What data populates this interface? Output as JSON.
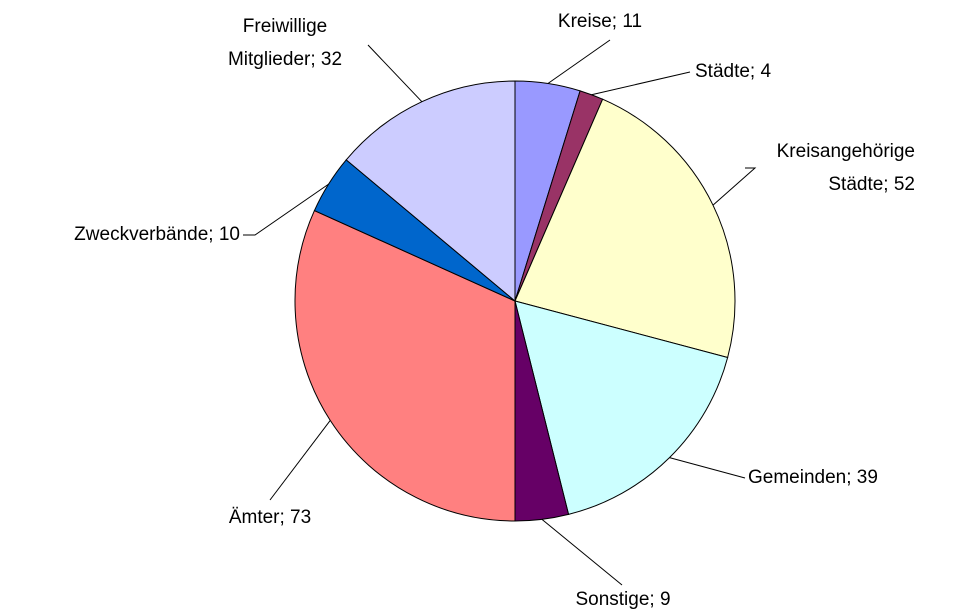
{
  "chart_data": {
    "type": "pie",
    "values": [
      11,
      4,
      52,
      39,
      9,
      73,
      10,
      32
    ],
    "value_labels": [
      [
        "Kreise; 11"
      ],
      [
        "Städte; 4"
      ],
      [
        "Kreisangehörige",
        "Städte; 52"
      ],
      [
        "Gemeinden; 39"
      ],
      [
        "Sonstige; 9"
      ],
      [
        "Ämter; 73"
      ],
      [
        "Zweckverbände; 10"
      ],
      [
        "Freiwillige",
        "Mitglieder; 32"
      ]
    ],
    "colors": [
      "#9999ff",
      "#993366",
      "#ffffcc",
      "#ccffff",
      "#660066",
      "#ff8080",
      "#0066cc",
      "#ccccff"
    ]
  }
}
